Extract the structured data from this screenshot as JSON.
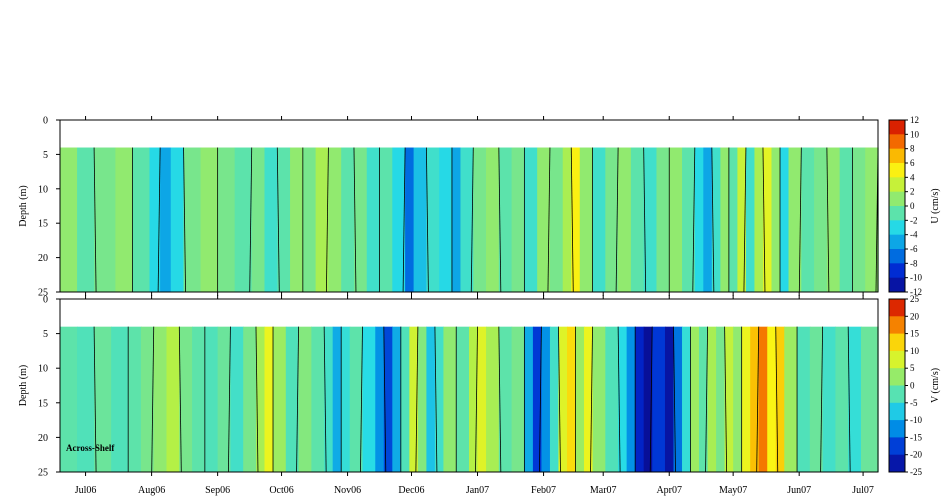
{
  "chart_data": [
    {
      "type": "heatmap",
      "panel": "top",
      "ylabel": "Depth (m)",
      "ylim": [
        0,
        25
      ],
      "yticks": [
        0,
        5,
        10,
        15,
        20,
        25
      ],
      "months": [
        "Jul06",
        "Aug06",
        "Sep06",
        "Oct06",
        "Nov06",
        "Dec06",
        "Jan07",
        "Feb07",
        "Mar07",
        "Apr07",
        "May07",
        "Jun07",
        "Jul07"
      ],
      "data_top_depth": 4,
      "colorbar": {
        "label": "U (cm/s)",
        "ticks": [
          12,
          10,
          8,
          6,
          4,
          2,
          0,
          -2,
          -4,
          -6,
          -8,
          -10,
          -12
        ],
        "range": [
          -12,
          12
        ]
      },
      "columns": [
        {
          "day": 0,
          "value": 1
        },
        {
          "day": 8,
          "value": -1
        },
        {
          "day": 16,
          "value": 0
        },
        {
          "day": 26,
          "value": 1
        },
        {
          "day": 34,
          "value": -1
        },
        {
          "day": 42,
          "value": -3
        },
        {
          "day": 47,
          "value": -5
        },
        {
          "day": 52,
          "value": -3
        },
        {
          "day": 58,
          "value": 0
        },
        {
          "day": 66,
          "value": 1
        },
        {
          "day": 74,
          "value": 0
        },
        {
          "day": 82,
          "value": -1
        },
        {
          "day": 90,
          "value": 0
        },
        {
          "day": 96,
          "value": -2
        },
        {
          "day": 102,
          "value": -1
        },
        {
          "day": 108,
          "value": 1
        },
        {
          "day": 114,
          "value": 0
        },
        {
          "day": 120,
          "value": 2
        },
        {
          "day": 126,
          "value": 1
        },
        {
          "day": 132,
          "value": -1
        },
        {
          "day": 138,
          "value": 0
        },
        {
          "day": 144,
          "value": -2
        },
        {
          "day": 150,
          "value": -1
        },
        {
          "day": 156,
          "value": -3
        },
        {
          "day": 162,
          "value": -7
        },
        {
          "day": 166,
          "value": -4
        },
        {
          "day": 172,
          "value": -2
        },
        {
          "day": 178,
          "value": -3
        },
        {
          "day": 184,
          "value": -5
        },
        {
          "day": 188,
          "value": -2
        },
        {
          "day": 194,
          "value": 0
        },
        {
          "day": 200,
          "value": 1
        },
        {
          "day": 206,
          "value": -1
        },
        {
          "day": 212,
          "value": 0
        },
        {
          "day": 218,
          "value": -2
        },
        {
          "day": 224,
          "value": 1
        },
        {
          "day": 230,
          "value": 0
        },
        {
          "day": 236,
          "value": 2
        },
        {
          "day": 240,
          "value": 5
        },
        {
          "day": 244,
          "value": 1
        },
        {
          "day": 250,
          "value": -2
        },
        {
          "day": 256,
          "value": 0
        },
        {
          "day": 262,
          "value": 1
        },
        {
          "day": 268,
          "value": -1
        },
        {
          "day": 274,
          "value": -2
        },
        {
          "day": 280,
          "value": 0
        },
        {
          "day": 286,
          "value": 1
        },
        {
          "day": 292,
          "value": -1
        },
        {
          "day": 298,
          "value": -3
        },
        {
          "day": 302,
          "value": -5
        },
        {
          "day": 306,
          "value": -2
        },
        {
          "day": 310,
          "value": 1
        },
        {
          "day": 314,
          "value": -1
        },
        {
          "day": 318,
          "value": 3
        },
        {
          "day": 322,
          "value": -2
        },
        {
          "day": 326,
          "value": 2
        },
        {
          "day": 330,
          "value": 4
        },
        {
          "day": 334,
          "value": 1
        },
        {
          "day": 338,
          "value": -3
        },
        {
          "day": 342,
          "value": 1
        },
        {
          "day": 348,
          "value": -1
        },
        {
          "day": 354,
          "value": 0
        },
        {
          "day": 360,
          "value": 1
        },
        {
          "day": 366,
          "value": -1
        },
        {
          "day": 372,
          "value": 0
        },
        {
          "day": 378,
          "value": 1
        },
        {
          "day": 384,
          "value": -1
        }
      ]
    },
    {
      "type": "heatmap",
      "panel": "bottom",
      "ylabel": "Depth (m)",
      "ylim": [
        0,
        25
      ],
      "yticks": [
        0,
        5,
        10,
        15,
        20,
        25
      ],
      "months": [
        "Jul06",
        "Aug06",
        "Sep06",
        "Oct06",
        "Nov06",
        "Dec06",
        "Jan07",
        "Feb07",
        "Mar07",
        "Apr07",
        "May07",
        "Jun07",
        "Jul07"
      ],
      "data_top_depth": 4,
      "annotation": "Across-Shelf",
      "colorbar": {
        "label": "V (cm/s)",
        "ticks": [
          25,
          20,
          15,
          10,
          5,
          0,
          -5,
          -10,
          -15,
          -20,
          -25
        ],
        "range": [
          -25,
          25
        ]
      },
      "columns": [
        {
          "day": 0,
          "value": -2
        },
        {
          "day": 8,
          "value": -3
        },
        {
          "day": 16,
          "value": -1
        },
        {
          "day": 24,
          "value": -3
        },
        {
          "day": 32,
          "value": -2
        },
        {
          "day": 38,
          "value": 0
        },
        {
          "day": 44,
          "value": 2
        },
        {
          "day": 50,
          "value": 5
        },
        {
          "day": 56,
          "value": 0
        },
        {
          "day": 62,
          "value": -2
        },
        {
          "day": 68,
          "value": -3
        },
        {
          "day": 74,
          "value": -1
        },
        {
          "day": 80,
          "value": -4
        },
        {
          "day": 86,
          "value": 0
        },
        {
          "day": 92,
          "value": 4
        },
        {
          "day": 96,
          "value": 9
        },
        {
          "day": 100,
          "value": 3
        },
        {
          "day": 106,
          "value": -3
        },
        {
          "day": 112,
          "value": 1
        },
        {
          "day": 118,
          "value": -2
        },
        {
          "day": 124,
          "value": -4
        },
        {
          "day": 128,
          "value": -10
        },
        {
          "day": 132,
          "value": -5
        },
        {
          "day": 136,
          "value": -2
        },
        {
          "day": 142,
          "value": -6
        },
        {
          "day": 148,
          "value": -12
        },
        {
          "day": 152,
          "value": -17
        },
        {
          "day": 156,
          "value": -10
        },
        {
          "day": 160,
          "value": -3
        },
        {
          "day": 164,
          "value": 7
        },
        {
          "day": 168,
          "value": 1
        },
        {
          "day": 172,
          "value": -8
        },
        {
          "day": 176,
          "value": -4
        },
        {
          "day": 180,
          "value": 2
        },
        {
          "day": 186,
          "value": -2
        },
        {
          "day": 192,
          "value": 5
        },
        {
          "day": 196,
          "value": 8
        },
        {
          "day": 200,
          "value": 4
        },
        {
          "day": 206,
          "value": -2
        },
        {
          "day": 212,
          "value": 0
        },
        {
          "day": 218,
          "value": -10
        },
        {
          "day": 222,
          "value": -18
        },
        {
          "day": 226,
          "value": -12
        },
        {
          "day": 230,
          "value": -4
        },
        {
          "day": 234,
          "value": 8
        },
        {
          "day": 238,
          "value": 12
        },
        {
          "day": 242,
          "value": 3
        },
        {
          "day": 246,
          "value": 9
        },
        {
          "day": 250,
          "value": 2
        },
        {
          "day": 256,
          "value": -3
        },
        {
          "day": 262,
          "value": -6
        },
        {
          "day": 266,
          "value": -12
        },
        {
          "day": 270,
          "value": -20
        },
        {
          "day": 274,
          "value": -24
        },
        {
          "day": 278,
          "value": -18
        },
        {
          "day": 284,
          "value": -23
        },
        {
          "day": 288,
          "value": -14
        },
        {
          "day": 292,
          "value": -5
        },
        {
          "day": 296,
          "value": 3
        },
        {
          "day": 300,
          "value": -2
        },
        {
          "day": 304,
          "value": 4
        },
        {
          "day": 308,
          "value": 0
        },
        {
          "day": 312,
          "value": 6
        },
        {
          "day": 316,
          "value": 2
        },
        {
          "day": 320,
          "value": 9
        },
        {
          "day": 324,
          "value": 14
        },
        {
          "day": 328,
          "value": 18
        },
        {
          "day": 332,
          "value": 10
        },
        {
          "day": 336,
          "value": 13
        },
        {
          "day": 340,
          "value": 3
        },
        {
          "day": 346,
          "value": -3
        },
        {
          "day": 352,
          "value": -1
        },
        {
          "day": 358,
          "value": -4
        },
        {
          "day": 364,
          "value": -2
        },
        {
          "day": 370,
          "value": -5
        },
        {
          "day": 376,
          "value": -1
        },
        {
          "day": 384,
          "value": -2
        }
      ]
    }
  ]
}
